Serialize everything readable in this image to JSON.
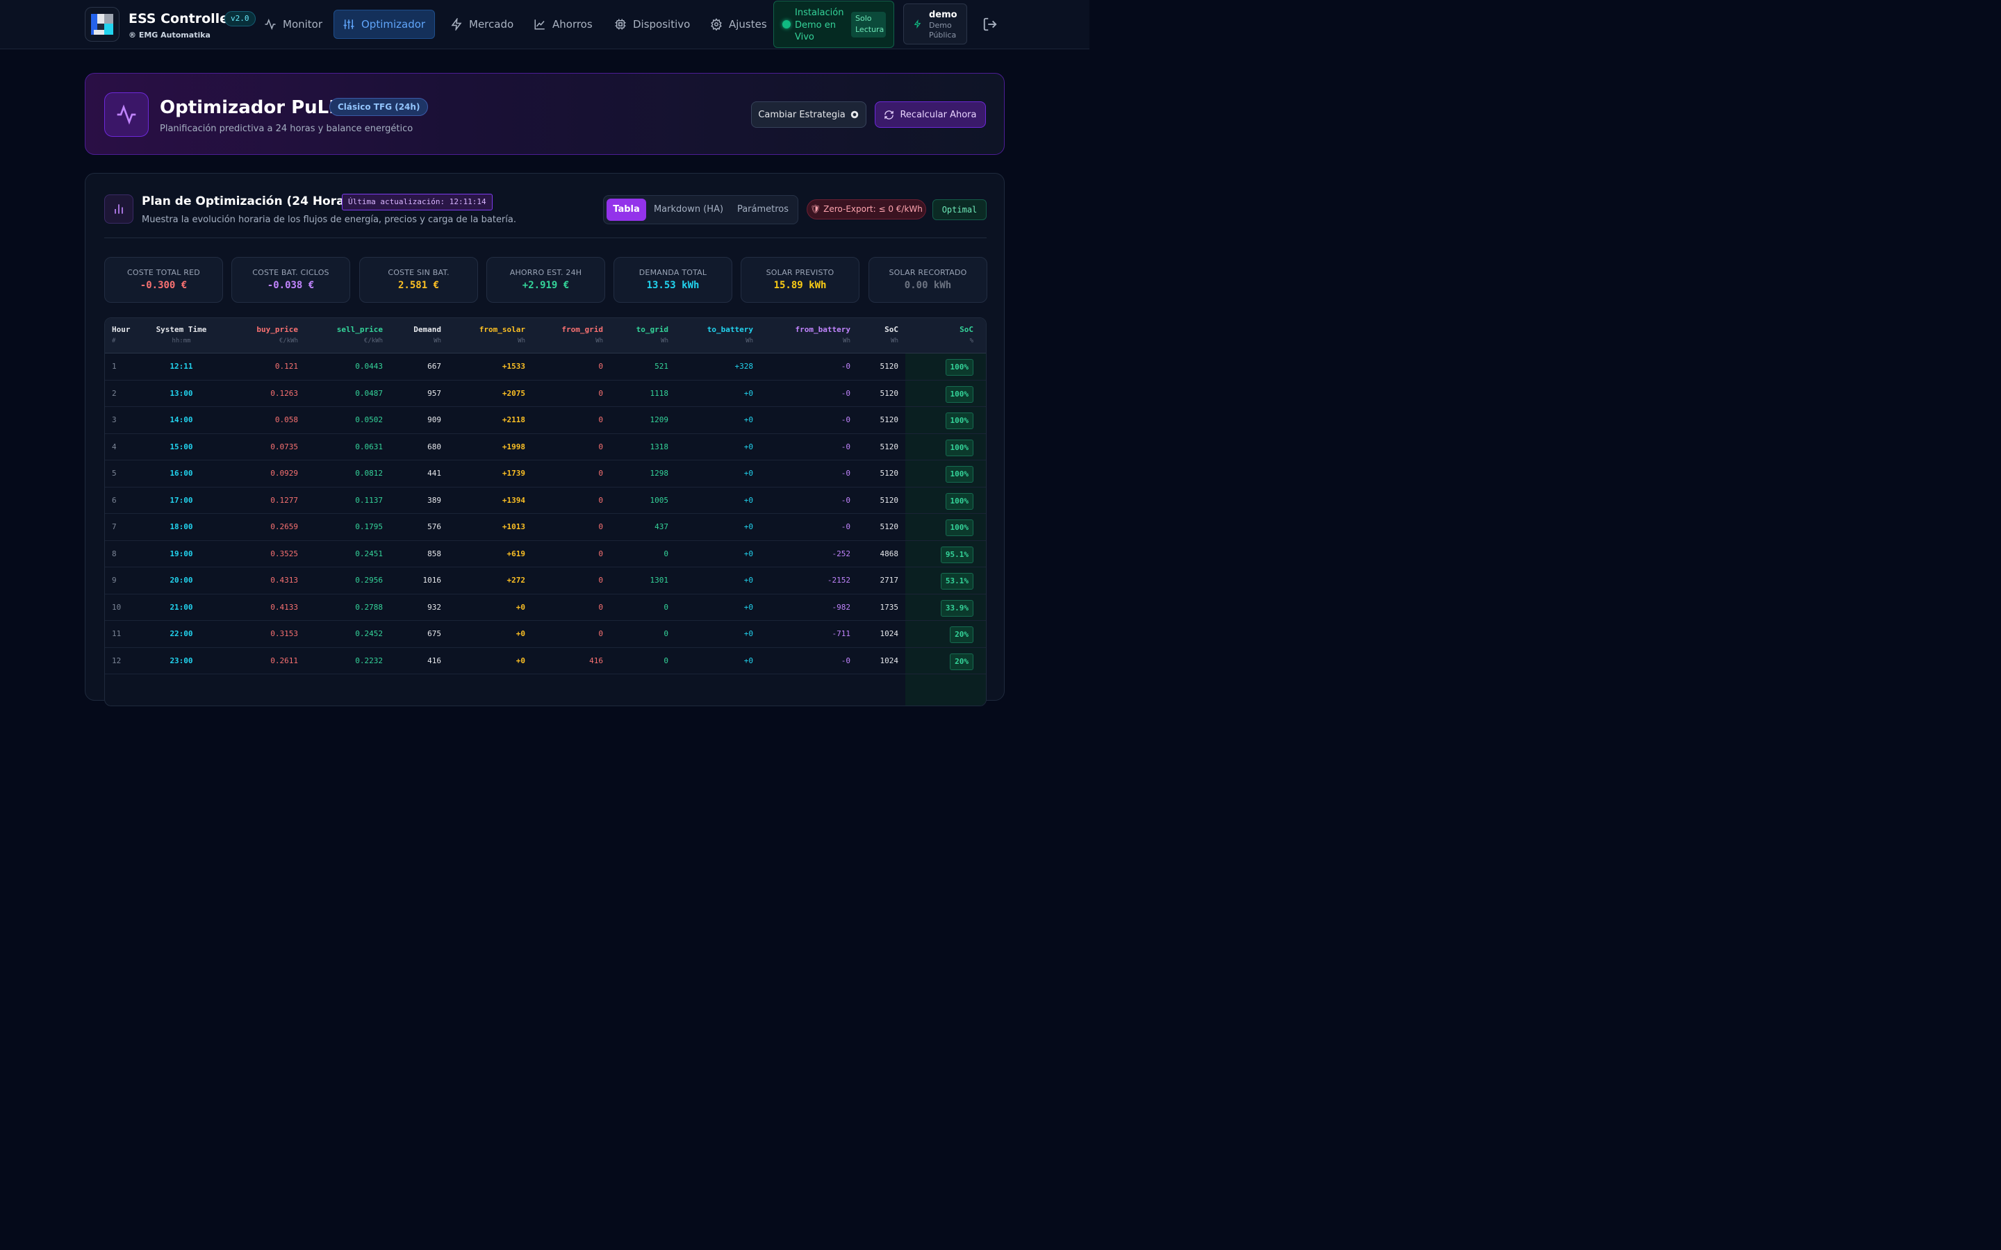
{
  "app": {
    "title": "ESS Controller",
    "version": "v2.0",
    "subtitle": "® EMG Automatika"
  },
  "nav": {
    "items": [
      {
        "label": "Monitor",
        "icon": "activity-icon"
      },
      {
        "label": "Optimizador",
        "icon": "sliders-icon",
        "active": true
      },
      {
        "label": "Mercado",
        "icon": "bolt-icon"
      },
      {
        "label": "Ahorros",
        "icon": "line-chart-icon"
      },
      {
        "label": "Dispositivo",
        "icon": "cpu-icon"
      },
      {
        "label": "Ajustes",
        "icon": "gear-icon"
      }
    ],
    "status_text": "Instalación Demo en Vivo",
    "status_badge": "Solo Lectura",
    "user_name": "demo",
    "user_role": "Demo Pública"
  },
  "hero": {
    "title": "Optimizador PuLP",
    "badge": "Clásico TFG (24h)",
    "subtitle": "Planificación predictiva a 24 horas y balance energético",
    "btn_strategy": "Cambiar Estrategia",
    "btn_recalc": "Recalcular Ahora"
  },
  "plan": {
    "title": "Plan de Optimización (24 Horas)",
    "updated": "Última actualización: 12:11:14",
    "subtitle": "Muestra la evolución horaria de los flujos de energía, precios y carga de la batería.",
    "tabs": [
      "Tabla",
      "Markdown (HA)",
      "Parámetros"
    ],
    "zero_export": "Zero-Export: ≤ 0 €/kWh",
    "status": "Optimal"
  },
  "kpis": [
    {
      "label": "COSTE TOTAL RED",
      "value": "-0.300 €",
      "color": "#f87171"
    },
    {
      "label": "COSTE BAT. CICLOS",
      "value": "-0.038 €",
      "color": "#c084fc"
    },
    {
      "label": "COSTE SIN BAT.",
      "value": "2.581 €",
      "color": "#fbbf24"
    },
    {
      "label": "AHORRO EST. 24H",
      "value": "+2.919 €",
      "color": "#34d399"
    },
    {
      "label": "DEMANDA TOTAL",
      "value": "13.53 kWh",
      "color": "#22d3ee"
    },
    {
      "label": "SOLAR PREVISTO",
      "value": "15.89 kWh",
      "color": "#facc15"
    },
    {
      "label": "SOLAR RECORTADO",
      "value": "0.00 kWh",
      "color": "#6b7280"
    }
  ],
  "table": {
    "headers": [
      {
        "label": "Hour",
        "unit": "#"
      },
      {
        "label": "System Time",
        "unit": "hh:mm"
      },
      {
        "label": "buy_price",
        "unit": "€/kWh"
      },
      {
        "label": "sell_price",
        "unit": "€/kWh"
      },
      {
        "label": "Demand",
        "unit": "Wh"
      },
      {
        "label": "from_solar",
        "unit": "Wh"
      },
      {
        "label": "from_grid",
        "unit": "Wh"
      },
      {
        "label": "to_grid",
        "unit": "Wh"
      },
      {
        "label": "to_battery",
        "unit": "Wh"
      },
      {
        "label": "from_battery",
        "unit": "Wh"
      },
      {
        "label": "SoC",
        "unit": "Wh"
      },
      {
        "label": "SoC",
        "unit": "%"
      }
    ],
    "rows": [
      [
        "1",
        "12:11",
        "0.121",
        "0.0443",
        "667",
        "+1533",
        "0",
        "521",
        "+328",
        "-0",
        "5120",
        "100%"
      ],
      [
        "2",
        "13:00",
        "0.1263",
        "0.0487",
        "957",
        "+2075",
        "0",
        "1118",
        "+0",
        "-0",
        "5120",
        "100%"
      ],
      [
        "3",
        "14:00",
        "0.058",
        "0.0502",
        "909",
        "+2118",
        "0",
        "1209",
        "+0",
        "-0",
        "5120",
        "100%"
      ],
      [
        "4",
        "15:00",
        "0.0735",
        "0.0631",
        "680",
        "+1998",
        "0",
        "1318",
        "+0",
        "-0",
        "5120",
        "100%"
      ],
      [
        "5",
        "16:00",
        "0.0929",
        "0.0812",
        "441",
        "+1739",
        "0",
        "1298",
        "+0",
        "-0",
        "5120",
        "100%"
      ],
      [
        "6",
        "17:00",
        "0.1277",
        "0.1137",
        "389",
        "+1394",
        "0",
        "1005",
        "+0",
        "-0",
        "5120",
        "100%"
      ],
      [
        "7",
        "18:00",
        "0.2659",
        "0.1795",
        "576",
        "+1013",
        "0",
        "437",
        "+0",
        "-0",
        "5120",
        "100%"
      ],
      [
        "8",
        "19:00",
        "0.3525",
        "0.2451",
        "858",
        "+619",
        "0",
        "0",
        "+0",
        "-252",
        "4868",
        "95.1%"
      ],
      [
        "9",
        "20:00",
        "0.4313",
        "0.2956",
        "1016",
        "+272",
        "0",
        "1301",
        "+0",
        "-2152",
        "2717",
        "53.1%"
      ],
      [
        "10",
        "21:00",
        "0.4133",
        "0.2788",
        "932",
        "+0",
        "0",
        "0",
        "+0",
        "-982",
        "1735",
        "33.9%"
      ],
      [
        "11",
        "22:00",
        "0.3153",
        "0.2452",
        "675",
        "+0",
        "0",
        "0",
        "+0",
        "-711",
        "1024",
        "20%"
      ],
      [
        "12",
        "23:00",
        "0.2611",
        "0.2232",
        "416",
        "+0",
        "416",
        "0",
        "+0",
        "-0",
        "1024",
        "20%"
      ]
    ]
  }
}
